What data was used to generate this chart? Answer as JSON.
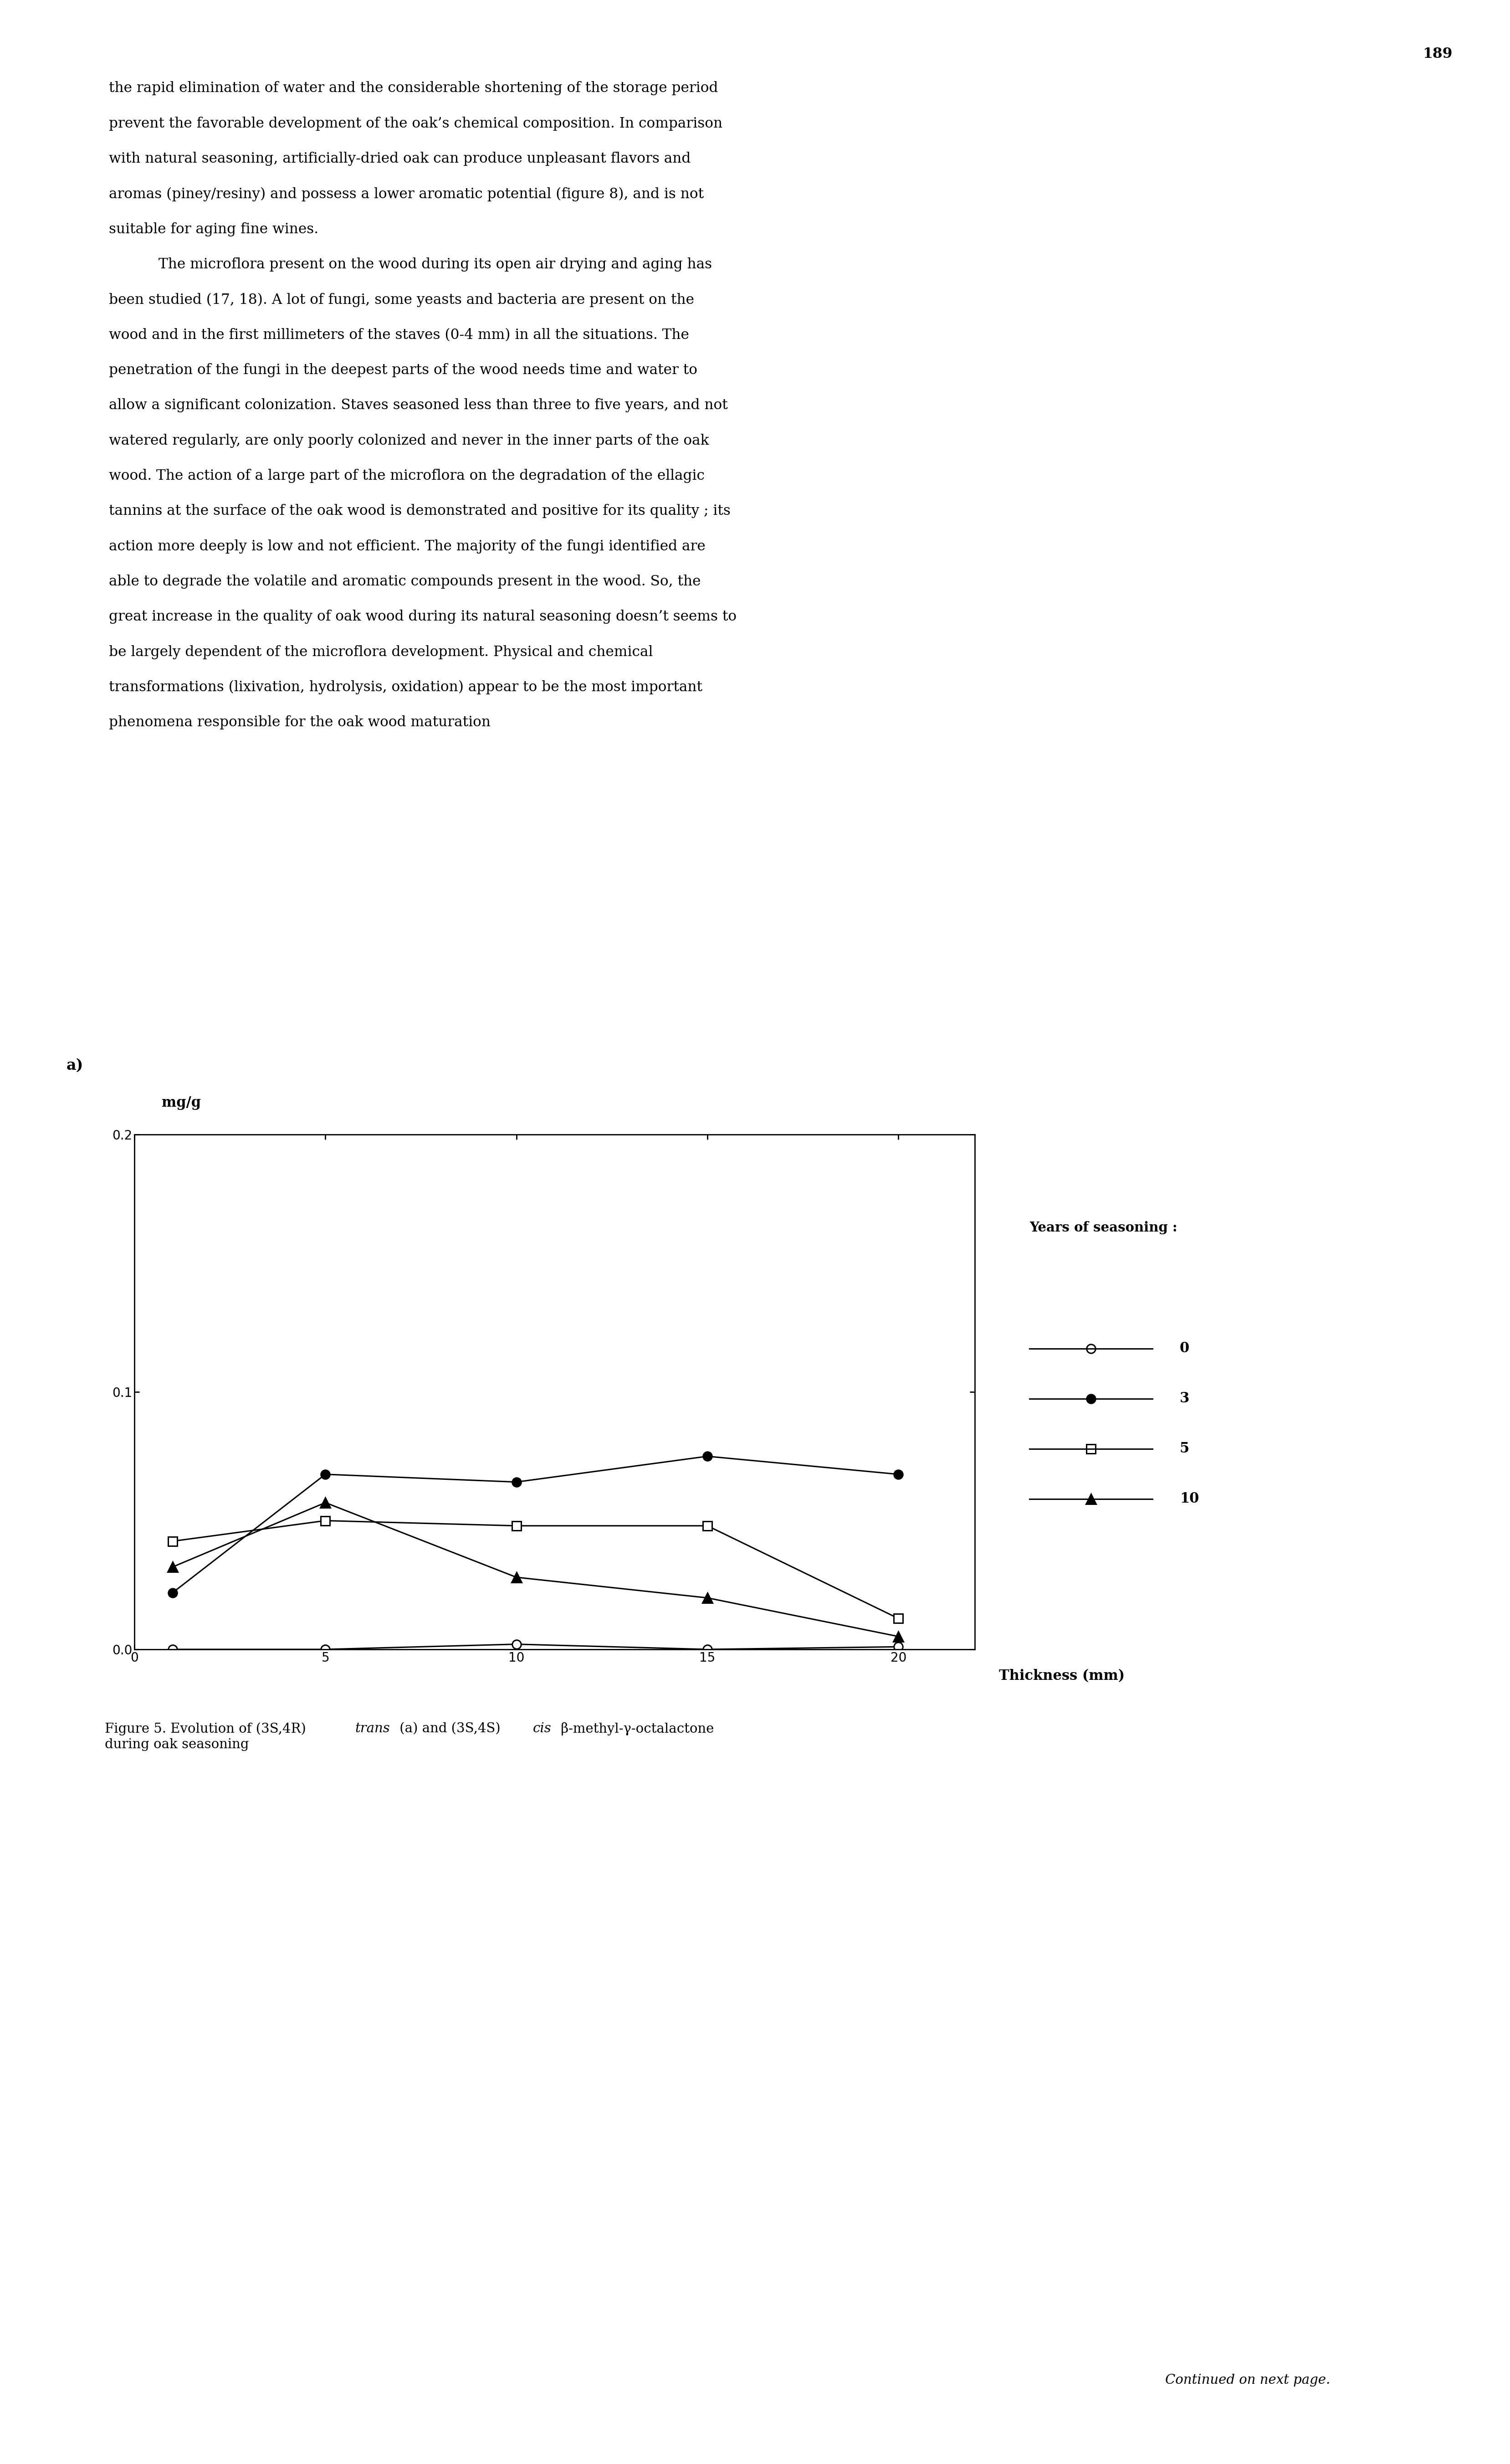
{
  "page_number": "189",
  "body_lines": [
    "the rapid elimination of water and the considerable shortening of the storage period",
    "prevent the favorable development of the oak’s chemical composition. In comparison",
    "with natural seasoning, artificially-dried oak can produce unpleasant flavors and",
    "aromas (piney/resiny) and possess a lower aromatic potential (figure 8), and is not",
    "suitable for aging fine wines.",
    "    The microflora present on the wood during its open air drying and aging has",
    "been studied (17, 18). A lot of fungi, some yeasts and bacteria are present on the",
    "wood and in the first millimeters of the staves (0-4 mm) in all the situations. The",
    "penetration of the fungi in the deepest parts of the wood needs time and water to",
    "allow a significant colonization. Staves seasoned less than three to five years, and not",
    "watered regularly, are only poorly colonized and never in the inner parts of the oak",
    "wood. The action of a large part of the microflora on the degradation of the ellagic",
    "tannins at the surface of the oak wood is demonstrated and positive for its quality ; its",
    "action more deeply is low and not efficient. The majority of the fungi identified are",
    "able to degrade the volatile and aromatic compounds present in the wood. So, the",
    "great increase in the quality of oak wood during its natural seasoning doesn’t seems to",
    "be largely dependent of the microflora development. Physical and chemical",
    "transformations (lixivation, hydrolysis, oxidation) appear to be the most important",
    "phenomena responsible for the oak wood maturation"
  ],
  "subplot_a_label": "a)",
  "ylabel": "mg/g",
  "xlabel": "Thickness (mm)",
  "legend_title": "Years of seasoning :",
  "legend_entries": [
    {
      "label": "0",
      "marker": "o",
      "filled": false
    },
    {
      "label": "3",
      "marker": "o",
      "filled": true
    },
    {
      "label": "5",
      "marker": "s",
      "filled": false
    },
    {
      "label": "10",
      "marker": "^",
      "filled": true
    }
  ],
  "ylim": [
    0.0,
    0.2
  ],
  "xlim": [
    0,
    22
  ],
  "yticks": [
    0.0,
    0.1,
    0.2
  ],
  "xticks": [
    0,
    5,
    10,
    15,
    20
  ],
  "series": {
    "year0": {
      "x": [
        1,
        5,
        10,
        15,
        20
      ],
      "y": [
        0.0,
        0.0,
        0.002,
        0.0,
        0.001
      ],
      "marker": "o",
      "filled": false
    },
    "year3": {
      "x": [
        1,
        5,
        10,
        15,
        20
      ],
      "y": [
        0.022,
        0.068,
        0.065,
        0.075,
        0.068
      ],
      "marker": "o",
      "filled": true
    },
    "year5": {
      "x": [
        1,
        5,
        10,
        15,
        20
      ],
      "y": [
        0.042,
        0.05,
        0.048,
        0.048,
        0.012
      ],
      "marker": "s",
      "filled": false
    },
    "year10": {
      "x": [
        1,
        5,
        10,
        15,
        20
      ],
      "y": [
        0.032,
        0.057,
        0.028,
        0.02,
        0.005
      ],
      "marker": "^",
      "filled": true
    }
  },
  "caption_parts": [
    {
      "text": "Figure 5. Evolution of (3S,4R) ",
      "style": "normal"
    },
    {
      "text": "trans",
      "style": "italic"
    },
    {
      "text": " (a) and (3S,4S) ",
      "style": "normal"
    },
    {
      "text": "cis",
      "style": "italic"
    },
    {
      "text": " β-methyl-γ-octalactone",
      "style": "normal"
    }
  ],
  "caption_line2": "during oak seasoning",
  "continued_text": "Continued on next page.",
  "background_color": "#ffffff",
  "text_color": "#000000"
}
